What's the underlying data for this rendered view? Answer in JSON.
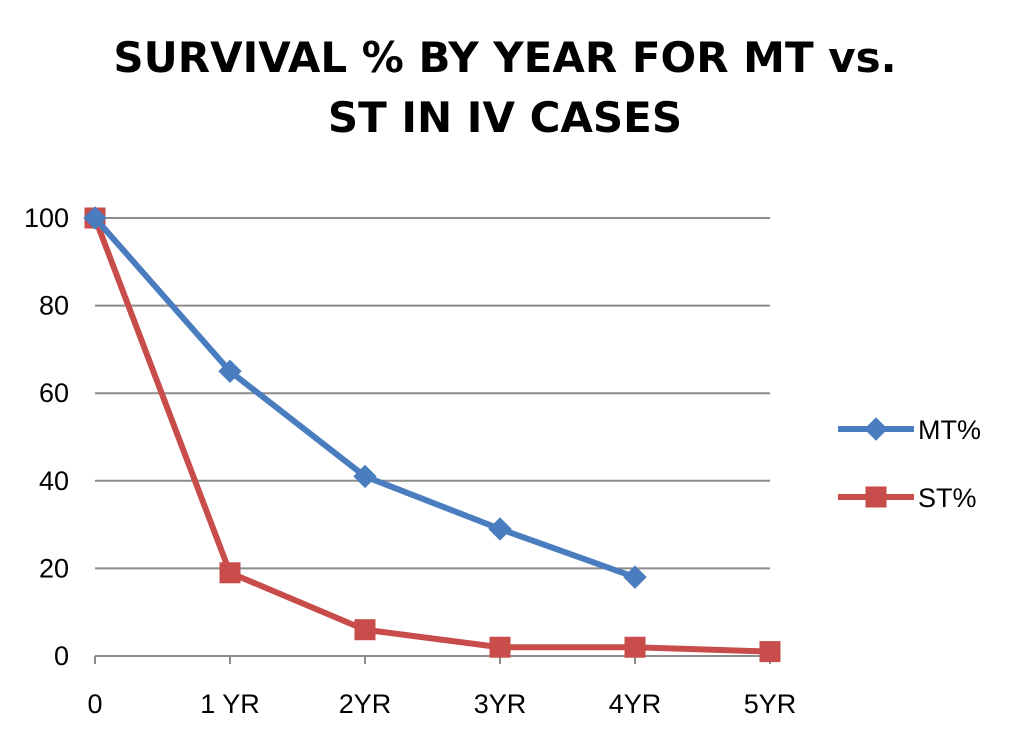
{
  "chart_data": {
    "type": "line",
    "title_lines": [
      "SURVIVAL % BY YEAR FOR MT vs.",
      "ST IN IV CASES"
    ],
    "xlabel": "",
    "ylabel": "",
    "categories": [
      "0",
      "1 YR",
      "2YR",
      "3YR",
      "4YR",
      "5YR"
    ],
    "ylim": [
      0,
      100
    ],
    "yticks": [
      "0",
      "20",
      "40",
      "60",
      "80",
      "100"
    ],
    "grid": true,
    "legend": "right",
    "series": [
      {
        "name": "MT%",
        "color": "#4a7dc0",
        "marker": "diamond",
        "values": [
          100,
          65,
          41,
          29,
          18,
          null
        ]
      },
      {
        "name": "ST%",
        "color": "#c84d4a",
        "marker": "square",
        "values": [
          100,
          19,
          6,
          2,
          2,
          1
        ]
      }
    ]
  }
}
